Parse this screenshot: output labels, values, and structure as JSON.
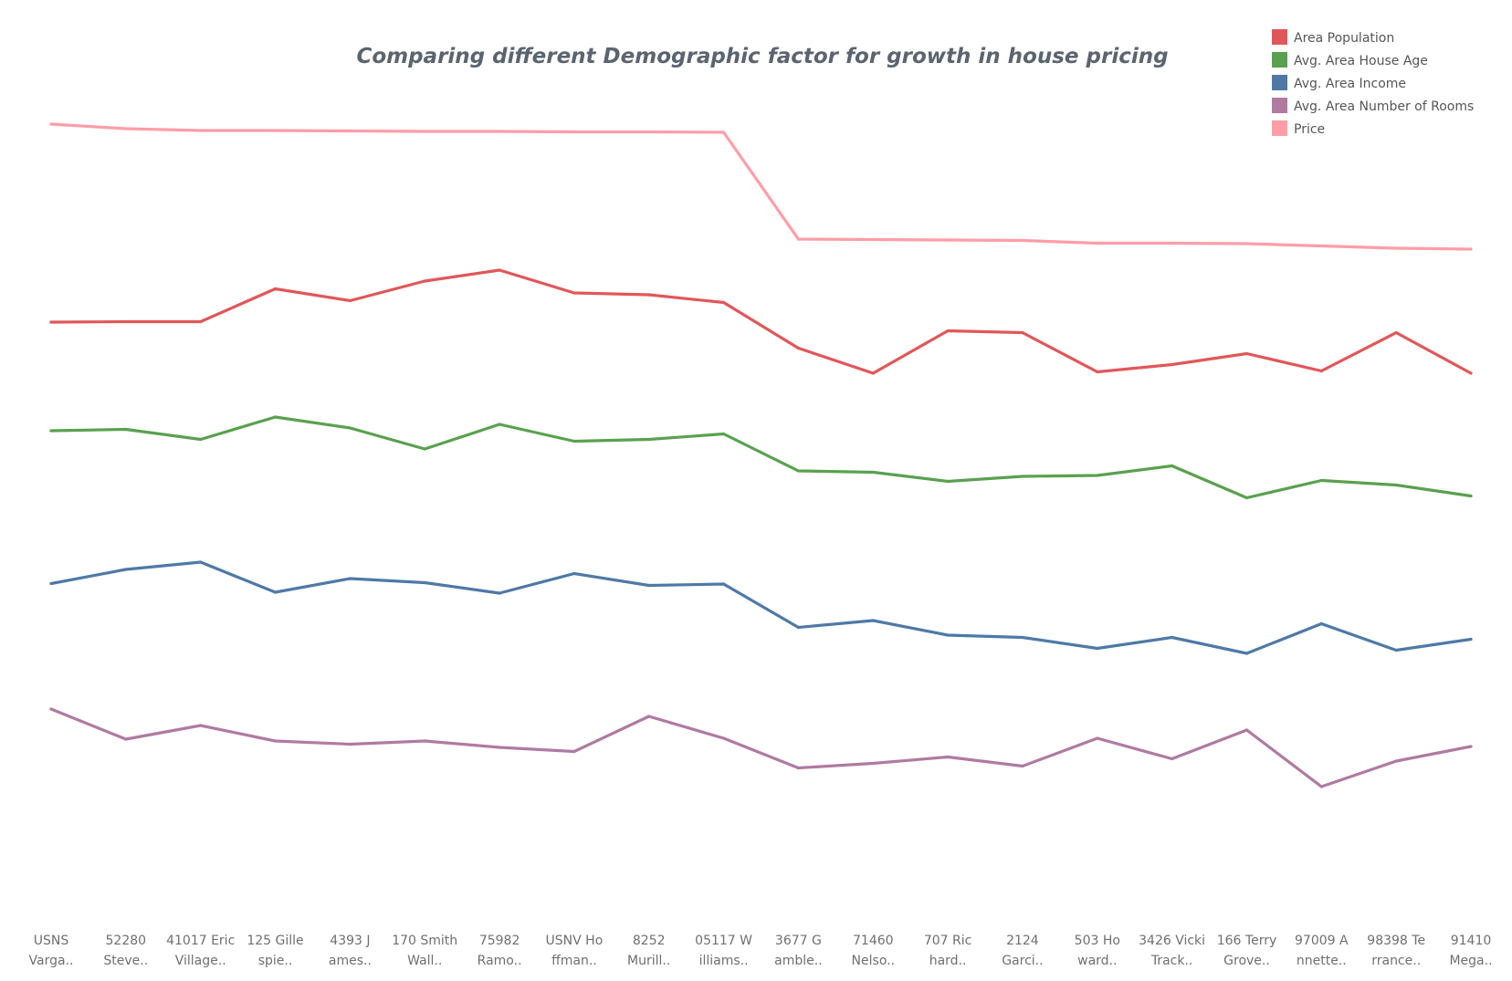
{
  "chart_data": {
    "type": "line",
    "title": "Comparing different Demographic factor for growth in house pricing",
    "xlabel": "",
    "ylabel": "",
    "grid": false,
    "y_axis": "hidden",
    "legend_position": "top-right",
    "categories": [
      [
        "USNS",
        "Varga.."
      ],
      [
        "52280",
        "Steve.."
      ],
      [
        "41017 Eric",
        "Village.."
      ],
      [
        "125 Gille",
        "spie.."
      ],
      [
        "4393 J",
        "ames.."
      ],
      [
        "170 Smith",
        "Wall.."
      ],
      [
        "75982",
        "Ramo.."
      ],
      [
        "USNV Ho",
        "ffman.."
      ],
      [
        "8252",
        "Murill.."
      ],
      [
        "05117 W",
        "illiams.."
      ],
      [
        "3677 G",
        "amble.."
      ],
      [
        "71460",
        "Nelso.."
      ],
      [
        "707 Ric",
        "hard.."
      ],
      [
        "2124",
        "Garci.."
      ],
      [
        "503 Ho",
        "ward.."
      ],
      [
        "3426 Vicki",
        "Track.."
      ],
      [
        "166 Terry",
        "Grove.."
      ],
      [
        "97009 A",
        "nnette.."
      ],
      [
        "98398 Te",
        "rrance.."
      ],
      [
        "91410",
        "Mega.."
      ]
    ],
    "series": [
      {
        "name": "Price",
        "color": "#ff9da7",
        "values": [
          92.4,
          91.9,
          91.7,
          91.7,
          91.65,
          91.6,
          91.6,
          91.55,
          91.55,
          91.5,
          79.8,
          79.75,
          79.7,
          79.65,
          79.35,
          79.35,
          79.3,
          79.05,
          78.8,
          78.7
        ]
      },
      {
        "name": "Area Population",
        "color": "#e15759",
        "values": [
          70.7,
          70.75,
          70.75,
          74.35,
          73.05,
          75.2,
          76.4,
          73.9,
          73.7,
          72.85,
          67.85,
          65.1,
          69.75,
          69.55,
          65.25,
          66.05,
          67.25,
          65.35,
          69.55,
          65.1
        ]
      },
      {
        "name": "Avg. Area House Age",
        "color": "#59a14f",
        "values": [
          58.8,
          58.95,
          57.85,
          60.3,
          59.1,
          56.8,
          59.5,
          57.65,
          57.85,
          58.45,
          54.4,
          54.25,
          53.25,
          53.8,
          53.9,
          54.95,
          51.45,
          53.35,
          52.85,
          51.65
        ]
      },
      {
        "name": "Avg. Area Income",
        "color": "#4e79a7",
        "values": [
          42.05,
          43.6,
          44.4,
          41.1,
          42.6,
          42.15,
          41.0,
          43.15,
          41.85,
          42.0,
          37.25,
          38.0,
          36.4,
          36.15,
          34.95,
          36.15,
          34.4,
          37.65,
          34.75,
          35.95
        ]
      },
      {
        "name": "Avg. Area Number of Rooms",
        "color": "#b07aa1",
        "values": [
          28.3,
          25.0,
          26.5,
          24.8,
          24.45,
          24.8,
          24.1,
          23.65,
          27.5,
          25.1,
          21.85,
          22.35,
          23.05,
          22.05,
          25.1,
          22.85,
          26.0,
          19.8,
          22.6,
          24.2
        ]
      }
    ],
    "legend": [
      {
        "label": "Area Population",
        "color": "#e15759"
      },
      {
        "label": "Avg. Area House Age",
        "color": "#59a14f"
      },
      {
        "label": "Avg. Area Income",
        "color": "#4e79a7"
      },
      {
        "label": "Avg. Area Number of Rooms",
        "color": "#b07aa1"
      },
      {
        "label": "Price",
        "color": "#ff9da7"
      }
    ],
    "ylim": [
      0,
      100
    ]
  }
}
